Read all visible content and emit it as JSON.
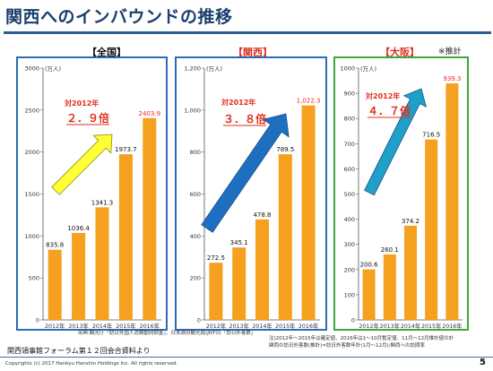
{
  "header": {
    "title": "関西へのインバウンドの推移",
    "note": "※推計"
  },
  "chart_data": [
    {
      "type": "bar",
      "panel_label": "【全国】",
      "unit": "(万人)",
      "categories": [
        "2012年",
        "2013年",
        "2014年",
        "2015年",
        "2016年"
      ],
      "values": [
        835.8,
        1036.4,
        1341.3,
        1973.7,
        2403.9
      ],
      "value_labels": [
        "835.8",
        "1036.4",
        "1341.3",
        "1973.7",
        "2403.9"
      ],
      "ylim": [
        0,
        3000
      ],
      "yticks": [
        0,
        500,
        1000,
        1500,
        2000,
        2500,
        3000
      ],
      "ytick_labels": [
        "0",
        "500",
        "1000",
        "1500",
        "2000",
        "2500",
        "3000"
      ],
      "annotation_top": "対2012年",
      "annotation_value": "２．９倍",
      "arrow_color": "#ffff33",
      "border_color": "#2a6cb5",
      "label_color": "#000000",
      "last_label_color": "#ff2020"
    },
    {
      "type": "bar",
      "panel_label": "【関西】",
      "unit": "(万人)",
      "categories": [
        "2012年",
        "2013年",
        "2014年",
        "2015年",
        "2016年"
      ],
      "values": [
        272.5,
        345.1,
        478.8,
        789.5,
        1022.3
      ],
      "value_labels": [
        "272.5",
        "345.1",
        "478.8",
        "789.5",
        "1,022.3"
      ],
      "ylim": [
        0,
        1200
      ],
      "yticks": [
        0,
        200,
        400,
        600,
        800,
        1000,
        1200
      ],
      "ytick_labels": [
        "0",
        "200",
        "400",
        "600",
        "800",
        "1,000",
        "1,200"
      ],
      "annotation_top": "対2012年",
      "annotation_value": "３．８倍",
      "arrow_color": "#1f6fc0",
      "border_color": "#2a6cb5",
      "label_color": "#e0301e",
      "last_label_color": "#ff2020"
    },
    {
      "type": "bar",
      "panel_label": "【大阪】",
      "unit": "(万人)",
      "categories": [
        "2012年",
        "2013年",
        "2014年",
        "2015年",
        "2016年"
      ],
      "values": [
        200.6,
        260.1,
        374.2,
        716.5,
        939.3
      ],
      "value_labels": [
        "200.6",
        "260.1",
        "374.2",
        "716.5",
        "939.3"
      ],
      "ylim": [
        0,
        1000
      ],
      "yticks": [
        0,
        100,
        200,
        300,
        400,
        500,
        600,
        700,
        800,
        900,
        1000
      ],
      "ytick_labels": [
        "0",
        "100",
        "200",
        "300",
        "400",
        "500",
        "600",
        "700",
        "800",
        "900",
        "1000"
      ],
      "annotation_top": "対2012年",
      "annotation_value": "４．７倍",
      "arrow_color": "#1fa0c8",
      "border_color": "#3aa83a",
      "label_color": "#e0301e",
      "last_label_color": "#ff2020"
    }
  ],
  "source": {
    "line1": "出典:観光庁「訪日外国人消費動向調査」、日本政府観光局(JNTO)「訪日外客数」"
  },
  "footnote": {
    "line1": "注)2012年～2015年は確定値、2016年は1～10月暫定値、11月～12月推計値の計",
    "line2": "関西の訪日外客数(推計)=訪日外客数年計(1月～12月)/関西への訪問率"
  },
  "meeting": "関西領事館フォーラム第１２回会合資料より",
  "footer": {
    "copyright": "Copyrights (c) 2017 Hankyu Hanshin Holdings Inc. All rights reserved.",
    "page": "5"
  },
  "colors": {
    "bar": "#f5a01e",
    "title": "#1a3f6e",
    "panel_label_red": "#e0301e"
  }
}
